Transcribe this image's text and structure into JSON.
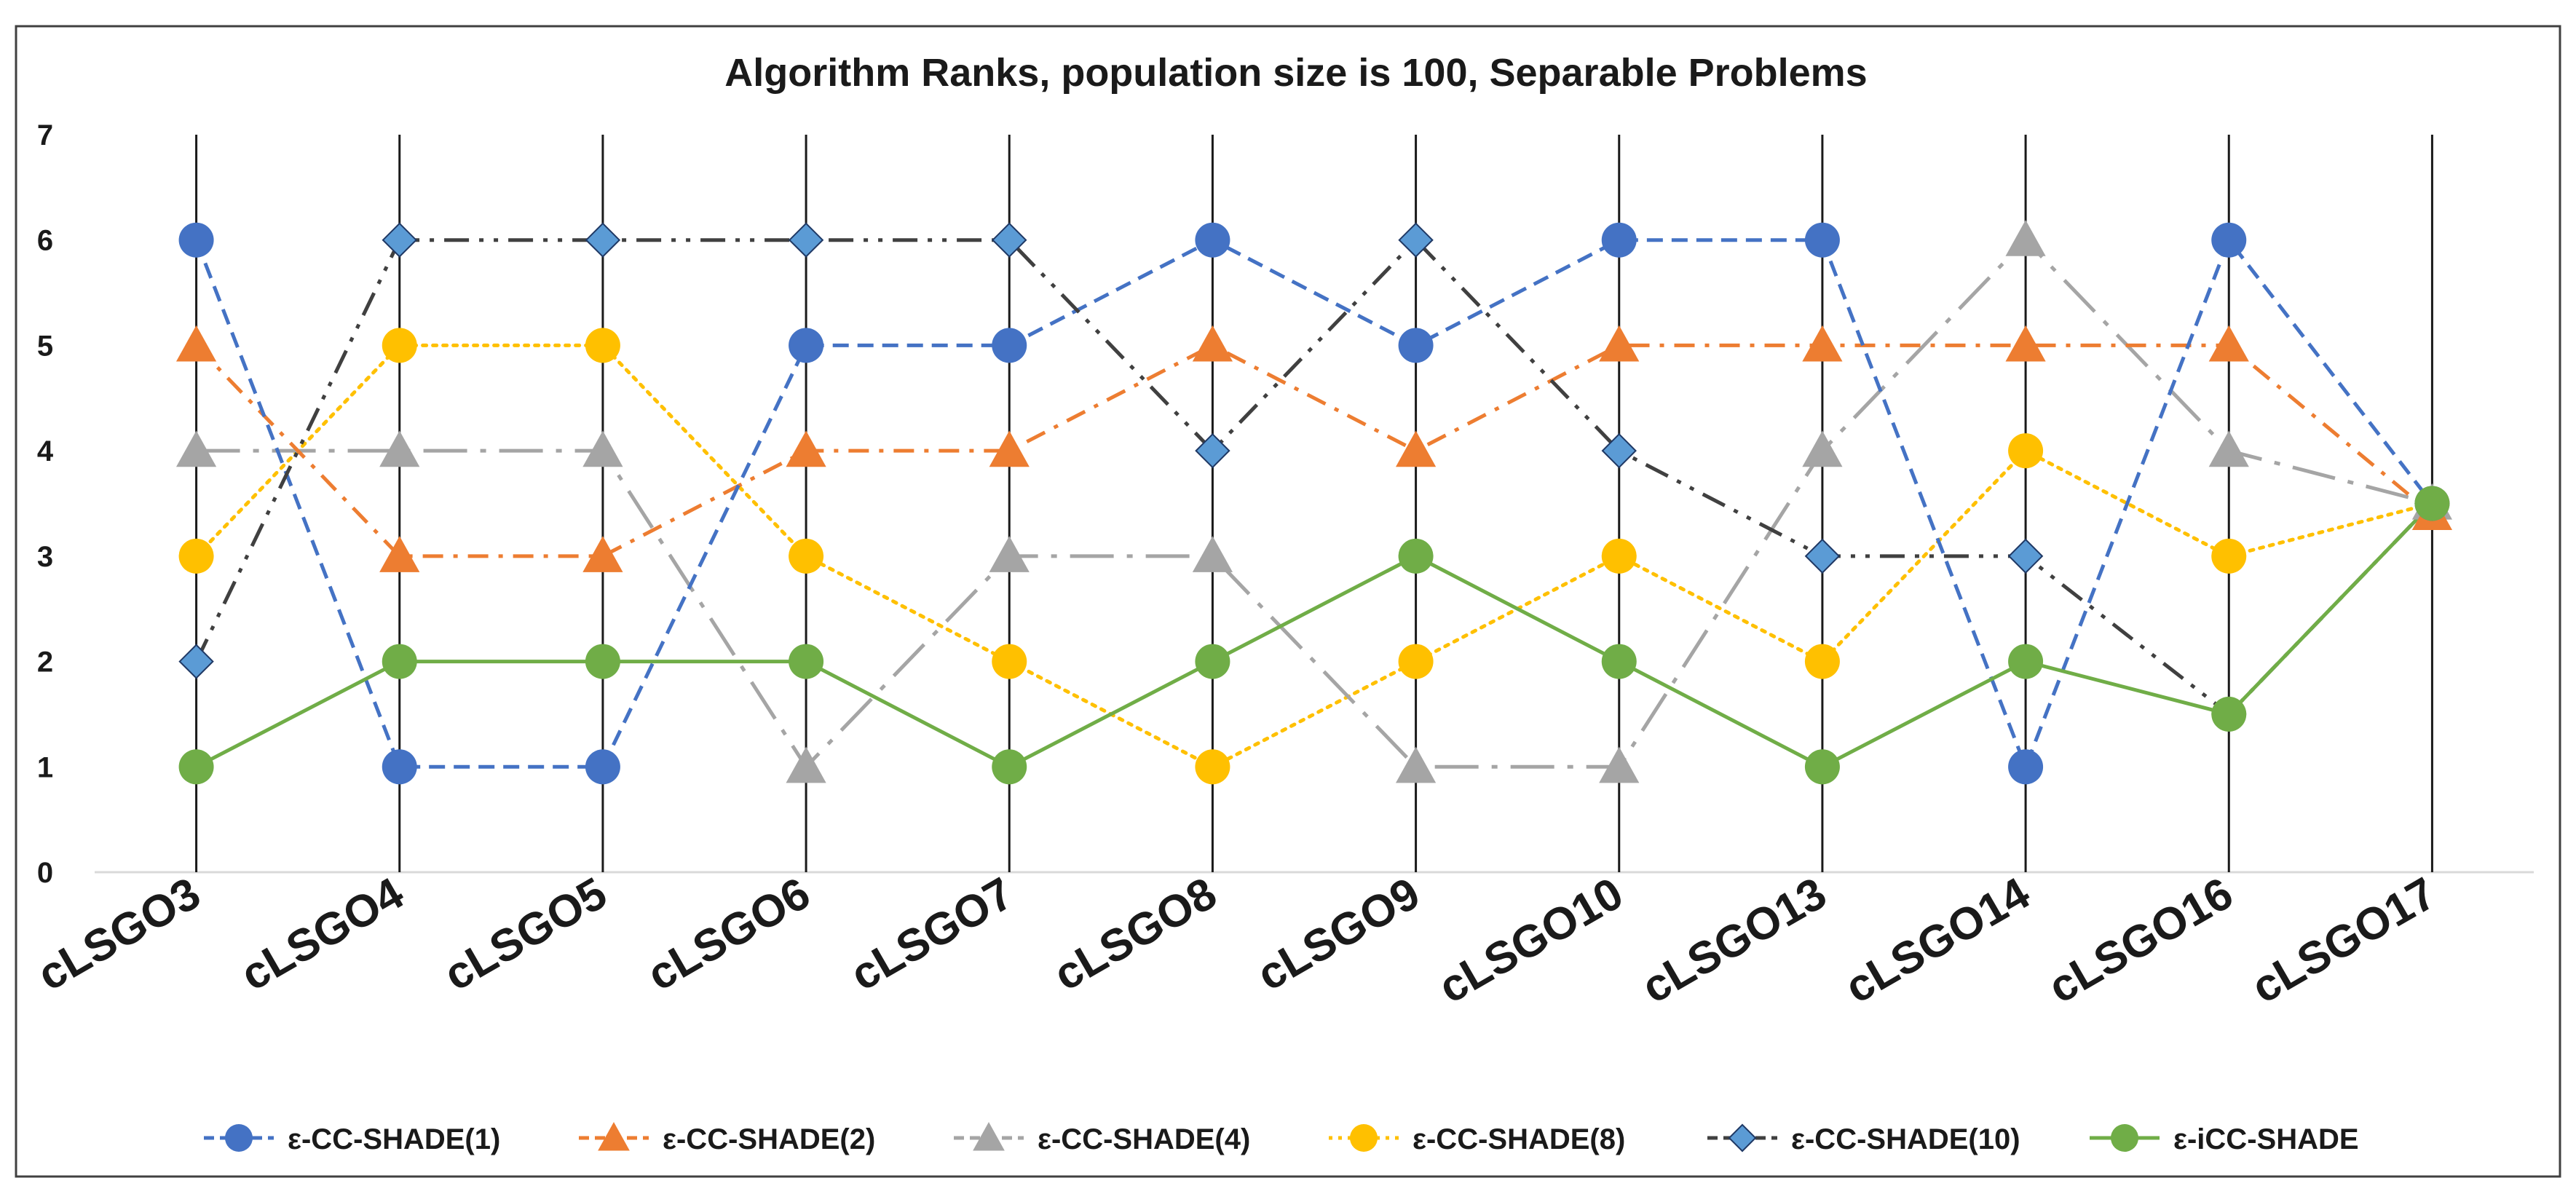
{
  "chart_data": {
    "type": "line",
    "title": "Algorithm Ranks, population size is 100, Separable Problems",
    "xlabel": "",
    "ylabel": "",
    "ylim": [
      0,
      7
    ],
    "yticks": [
      "0",
      "1",
      "2",
      "3",
      "4",
      "5",
      "6",
      "7"
    ],
    "categories": [
      "cLSGO3",
      "cLSGO4",
      "cLSGO5",
      "cLSGO6",
      "cLSGO7",
      "cLSGO8",
      "cLSGO9",
      "cLSGO10",
      "cLSGO13",
      "cLSGO14",
      "cLSGO16",
      "cLSGO17"
    ],
    "legend_position": "bottom",
    "series": [
      {
        "name": "ε-CC-SHADE(1)",
        "color": "#4472C4",
        "marker": "circle",
        "dash": "dash",
        "values": [
          6,
          1,
          1,
          5,
          5,
          6,
          5,
          6,
          6,
          1,
          6,
          3.5
        ]
      },
      {
        "name": "ε-CC-SHADE(2)",
        "color": "#ED7D31",
        "marker": "triangle",
        "dash": "dashdot",
        "values": [
          5,
          3,
          3,
          4,
          4,
          5,
          4,
          5,
          5,
          5,
          5,
          3.4
        ]
      },
      {
        "name": "ε-CC-SHADE(4)",
        "color": "#A5A5A5",
        "marker": "triangle",
        "dash": "longdashdot",
        "values": [
          4,
          4,
          4,
          1,
          3,
          3,
          1,
          1,
          4,
          6,
          4,
          3.5
        ]
      },
      {
        "name": "ε-CC-SHADE(8)",
        "color": "#FFC000",
        "marker": "circle",
        "dash": "dot",
        "values": [
          3,
          5,
          5,
          3,
          2,
          1,
          2,
          3,
          2,
          4,
          3,
          3.5
        ]
      },
      {
        "name": "ε-CC-SHADE(10)",
        "color": "#5B9BD5",
        "lineColor": "#404040",
        "marker": "diamond",
        "dash": "dashdotdot",
        "values": [
          2,
          6,
          6,
          6,
          6,
          4,
          6,
          4,
          3,
          3,
          1.5,
          3.5
        ]
      },
      {
        "name": "ε-iCC-SHADE",
        "color": "#70AD47",
        "marker": "circle",
        "dash": "solid",
        "values": [
          1,
          2,
          2,
          2,
          1,
          2,
          3,
          2,
          1,
          2,
          1.5,
          3.5
        ]
      }
    ]
  }
}
